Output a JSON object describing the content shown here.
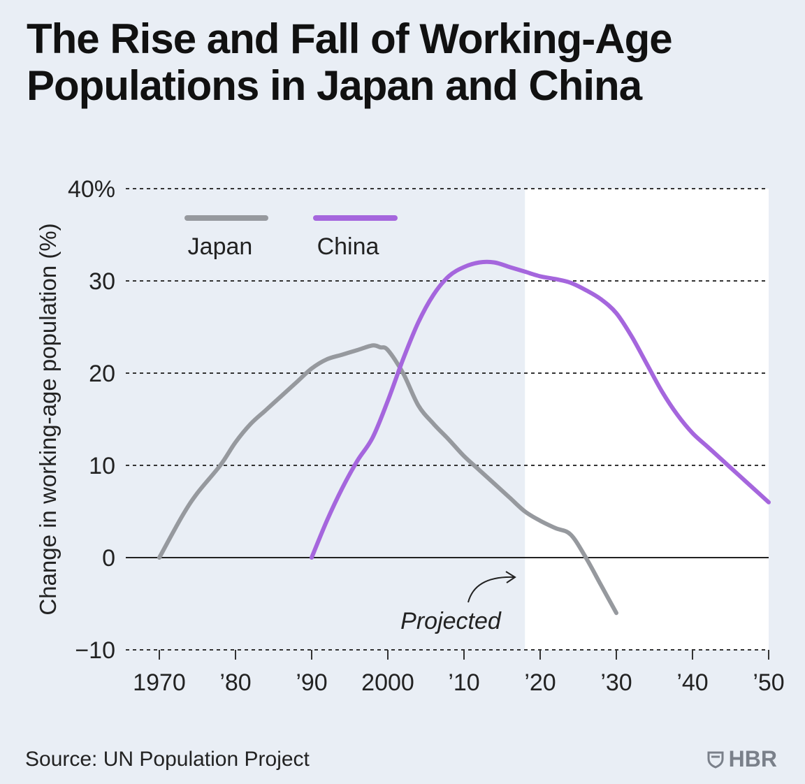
{
  "title": "The Rise and Fall of Working-Age Populations in Japan and China",
  "source": "Source: UN Population Project",
  "brand": "HBR",
  "colors": {
    "japan": "#96999e",
    "china": "#a566dd",
    "projected_bg": "#ffffff",
    "plot_bg": "#e9eef5"
  },
  "chart_data": {
    "type": "line",
    "title": "The Rise and Fall of Working-Age Populations in Japan and China",
    "ylabel": "Change in working-age population (%)",
    "xlabel": "",
    "xlim": [
      1970,
      2050
    ],
    "ylim": [
      -10,
      40
    ],
    "y_ticks": [
      {
        "value": -10,
        "label": "−10"
      },
      {
        "value": 0,
        "label": "0"
      },
      {
        "value": 10,
        "label": "10"
      },
      {
        "value": 20,
        "label": "20"
      },
      {
        "value": 30,
        "label": "30"
      },
      {
        "value": 40,
        "label": "40%"
      }
    ],
    "x_ticks": [
      {
        "value": 1970,
        "label": "1970"
      },
      {
        "value": 1980,
        "label": "’80"
      },
      {
        "value": 1990,
        "label": "’90"
      },
      {
        "value": 2000,
        "label": "2000"
      },
      {
        "value": 2010,
        "label": "’10"
      },
      {
        "value": 2020,
        "label": "’20"
      },
      {
        "value": 2030,
        "label": "’30"
      },
      {
        "value": 2040,
        "label": "’40"
      },
      {
        "value": 2050,
        "label": "’50"
      }
    ],
    "projected_from": 2018,
    "projected_label": "Projected",
    "legend_position": "top-left",
    "series": [
      {
        "name": "Japan",
        "color": "#96999e",
        "x": [
          1970,
          1973,
          1975,
          1978,
          1980,
          1982,
          1984,
          1986,
          1988,
          1990,
          1992,
          1994,
          1996,
          1998,
          1999,
          2000,
          2002,
          2004,
          2006,
          2008,
          2010,
          2012,
          2014,
          2016,
          2018,
          2020,
          2022,
          2024,
          2026,
          2028,
          2030
        ],
        "y": [
          0,
          4.5,
          7,
          10,
          12.5,
          14.5,
          16,
          17.5,
          19,
          20.5,
          21.5,
          22,
          22.5,
          23,
          22.8,
          22.5,
          20,
          16.5,
          14.5,
          12.8,
          11,
          9.5,
          8,
          6.5,
          5,
          4,
          3.2,
          2.5,
          0,
          -3,
          -6
        ]
      },
      {
        "name": "China",
        "color": "#a566dd",
        "x": [
          1990,
          1992,
          1994,
          1996,
          1998,
          2000,
          2002,
          2004,
          2006,
          2008,
          2010,
          2012,
          2014,
          2016,
          2018,
          2020,
          2022,
          2024,
          2026,
          2028,
          2030,
          2032,
          2034,
          2036,
          2038,
          2040,
          2042,
          2044,
          2046,
          2048,
          2050
        ],
        "y": [
          0,
          4,
          7.5,
          10.5,
          13,
          17,
          21.5,
          25.5,
          28.5,
          30.5,
          31.5,
          32,
          32,
          31.5,
          31,
          30.5,
          30.2,
          29.8,
          29,
          28,
          26.5,
          24,
          21,
          18,
          15.5,
          13.5,
          12,
          10.5,
          9,
          7.5,
          6
        ]
      }
    ]
  }
}
